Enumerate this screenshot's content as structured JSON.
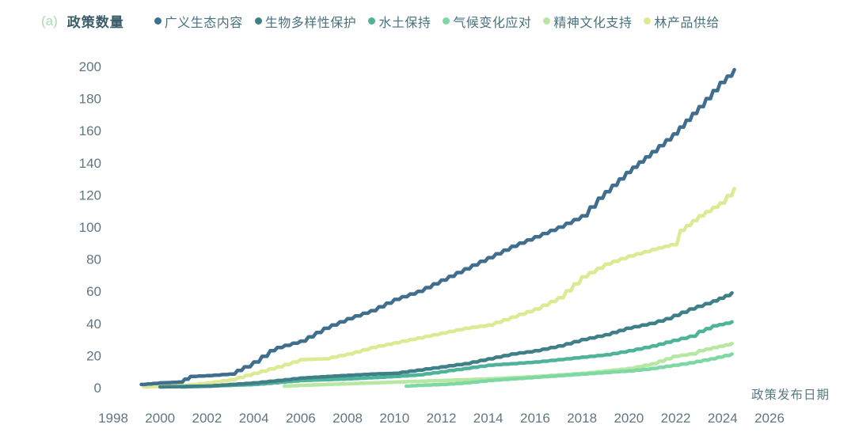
{
  "panel_label": "(a)",
  "y_axis_title": "政策数量",
  "x_axis_title": "政策发布日期",
  "colors": {
    "panel_label_text": "#a6ddb4",
    "y_axis_title_text": "#3b5d68",
    "legend_text": "#47727e",
    "tick_text": "#617681",
    "x_axis_title_text": "#567a85",
    "background": "#ffffff"
  },
  "chart_data": {
    "type": "line",
    "ylabel": "政策数量",
    "xlabel": "政策发布日期",
    "x_range": [
      1998,
      2026
    ],
    "y_range": [
      0,
      200
    ],
    "x_ticks": [
      1998,
      2000,
      2002,
      2004,
      2006,
      2008,
      2010,
      2012,
      2014,
      2016,
      2018,
      2020,
      2022,
      2024,
      2026
    ],
    "y_ticks": [
      0,
      20,
      40,
      60,
      80,
      100,
      120,
      140,
      160,
      180,
      200
    ],
    "grid": false,
    "legend_position": "top",
    "line_style": "cumulative-step",
    "series": [
      {
        "name": "广义生态内容",
        "color": "#3f6e8e",
        "points": [
          [
            1999.2,
            2
          ],
          [
            2000,
            3
          ],
          [
            2000.8,
            3.5
          ],
          [
            2001.3,
            7
          ],
          [
            2002,
            7.5
          ],
          [
            2003,
            8.5
          ],
          [
            2003.6,
            13
          ],
          [
            2004,
            16
          ],
          [
            2004.7,
            23
          ],
          [
            2005,
            25
          ],
          [
            2006,
            29
          ],
          [
            2007,
            37
          ],
          [
            2008,
            43
          ],
          [
            2009,
            48
          ],
          [
            2010,
            55
          ],
          [
            2011,
            60
          ],
          [
            2012,
            67
          ],
          [
            2013,
            74
          ],
          [
            2014,
            81
          ],
          [
            2015,
            88
          ],
          [
            2016,
            94
          ],
          [
            2017,
            100
          ],
          [
            2018,
            107
          ],
          [
            2018.7,
            118
          ],
          [
            2019.9,
            134
          ],
          [
            2021,
            147
          ],
          [
            2021.9,
            158
          ],
          [
            2023,
            175
          ],
          [
            2023.9,
            190
          ],
          [
            2024.5,
            198
          ]
        ]
      },
      {
        "name": "生物多样性保护",
        "color": "#3e7f88",
        "points": [
          [
            2000,
            0.5
          ],
          [
            2002,
            1
          ],
          [
            2003,
            2
          ],
          [
            2004,
            3
          ],
          [
            2005,
            4.5
          ],
          [
            2006,
            6
          ],
          [
            2007.7,
            7.5
          ],
          [
            2009,
            8.5
          ],
          [
            2010,
            9
          ],
          [
            2011,
            11
          ],
          [
            2012,
            13
          ],
          [
            2013,
            15
          ],
          [
            2014,
            18
          ],
          [
            2015,
            21
          ],
          [
            2016,
            23
          ],
          [
            2017,
            26
          ],
          [
            2018,
            30
          ],
          [
            2019,
            33
          ],
          [
            2019.9,
            37
          ],
          [
            2020.9,
            40
          ],
          [
            2021.6,
            43
          ],
          [
            2022.6,
            49
          ],
          [
            2023.6,
            54
          ],
          [
            2024.4,
            59
          ]
        ]
      },
      {
        "name": "水土保持",
        "color": "#4fb399",
        "points": [
          [
            2000.9,
            0.5
          ],
          [
            2002,
            1
          ],
          [
            2004,
            2
          ],
          [
            2006,
            4.5
          ],
          [
            2008,
            5.5
          ],
          [
            2010,
            7
          ],
          [
            2011,
            8
          ],
          [
            2012,
            10
          ],
          [
            2013,
            12
          ],
          [
            2014,
            14
          ],
          [
            2015,
            15
          ],
          [
            2016,
            16
          ],
          [
            2017,
            17.5
          ],
          [
            2018,
            19
          ],
          [
            2019,
            20.5
          ],
          [
            2020,
            23
          ],
          [
            2021,
            26
          ],
          [
            2021.9,
            29.5
          ],
          [
            2022.6,
            32
          ],
          [
            2023,
            35
          ],
          [
            2023.6,
            38.5
          ],
          [
            2024.4,
            41
          ]
        ]
      },
      {
        "name": "气候变化应对",
        "color": "#7ed8a4",
        "points": [
          [
            2010.5,
            1
          ],
          [
            2011,
            1.5
          ],
          [
            2012,
            2
          ],
          [
            2013,
            3
          ],
          [
            2014,
            4.5
          ],
          [
            2015,
            5.5
          ],
          [
            2016,
            6.5
          ],
          [
            2017,
            7.5
          ],
          [
            2018,
            8.5
          ],
          [
            2019,
            9.5
          ],
          [
            2020,
            10.5
          ],
          [
            2021,
            12
          ],
          [
            2021.9,
            14
          ],
          [
            2022.6,
            15.5
          ],
          [
            2023.5,
            18
          ],
          [
            2024.4,
            21
          ]
        ]
      },
      {
        "name": "精神文化支持",
        "color": "#b6e8a3",
        "points": [
          [
            2005.3,
            1
          ],
          [
            2006,
            1.5
          ],
          [
            2008,
            2.5
          ],
          [
            2010,
            3.5
          ],
          [
            2012,
            4.5
          ],
          [
            2014,
            5.5
          ],
          [
            2016,
            7
          ],
          [
            2017,
            8
          ],
          [
            2018,
            9
          ],
          [
            2019,
            10.5
          ],
          [
            2020,
            12
          ],
          [
            2021,
            15
          ],
          [
            2021.9,
            19.5
          ],
          [
            2022.6,
            21
          ],
          [
            2023,
            23
          ],
          [
            2023.6,
            25
          ],
          [
            2024.4,
            27.5
          ]
        ]
      },
      {
        "name": "林产品供给",
        "color": "#dcea94",
        "points": [
          [
            1999.3,
            0.5
          ],
          [
            2000,
            1
          ],
          [
            2001,
            1.5
          ],
          [
            2002,
            3
          ],
          [
            2003,
            5
          ],
          [
            2004,
            9
          ],
          [
            2005,
            13
          ],
          [
            2006,
            17.5
          ],
          [
            2007,
            18
          ],
          [
            2008,
            21
          ],
          [
            2009,
            25
          ],
          [
            2010,
            28
          ],
          [
            2011,
            31
          ],
          [
            2012,
            34
          ],
          [
            2013,
            37
          ],
          [
            2014,
            39
          ],
          [
            2015,
            44
          ],
          [
            2016,
            49
          ],
          [
            2017,
            56
          ],
          [
            2018,
            69
          ],
          [
            2019,
            77
          ],
          [
            2020,
            82
          ],
          [
            2021,
            86
          ],
          [
            2021.8,
            89
          ],
          [
            2022.2,
            98
          ],
          [
            2023,
            107
          ],
          [
            2023.9,
            115
          ],
          [
            2024.5,
            124
          ]
        ]
      }
    ]
  }
}
